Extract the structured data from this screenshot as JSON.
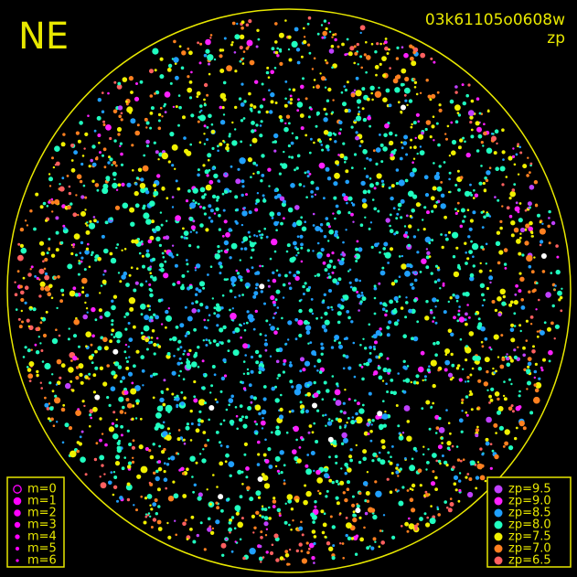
{
  "title": "NE",
  "image_id": "03k61105o0608w",
  "mode": "zp",
  "magnitude_legend": [
    "m=0",
    "m=1",
    "m=2",
    "m=3",
    "m=4",
    "m=5",
    "m=6"
  ],
  "magnitude_color": "#ff00ff",
  "zp_legend": [
    {
      "label": "zp=9.5",
      "color": "#c040ff"
    },
    {
      "label": "zp=9.0",
      "color": "#ff20ff"
    },
    {
      "label": "zp=8.5",
      "color": "#20a0ff"
    },
    {
      "label": "zp=8.0",
      "color": "#20ffc0"
    },
    {
      "label": "zp=7.5",
      "color": "#f0f000"
    },
    {
      "label": "zp=7.0",
      "color": "#ff8020"
    },
    {
      "label": "zp=6.5",
      "color": "#ff6060"
    }
  ],
  "frame_color": "#e8e800"
}
